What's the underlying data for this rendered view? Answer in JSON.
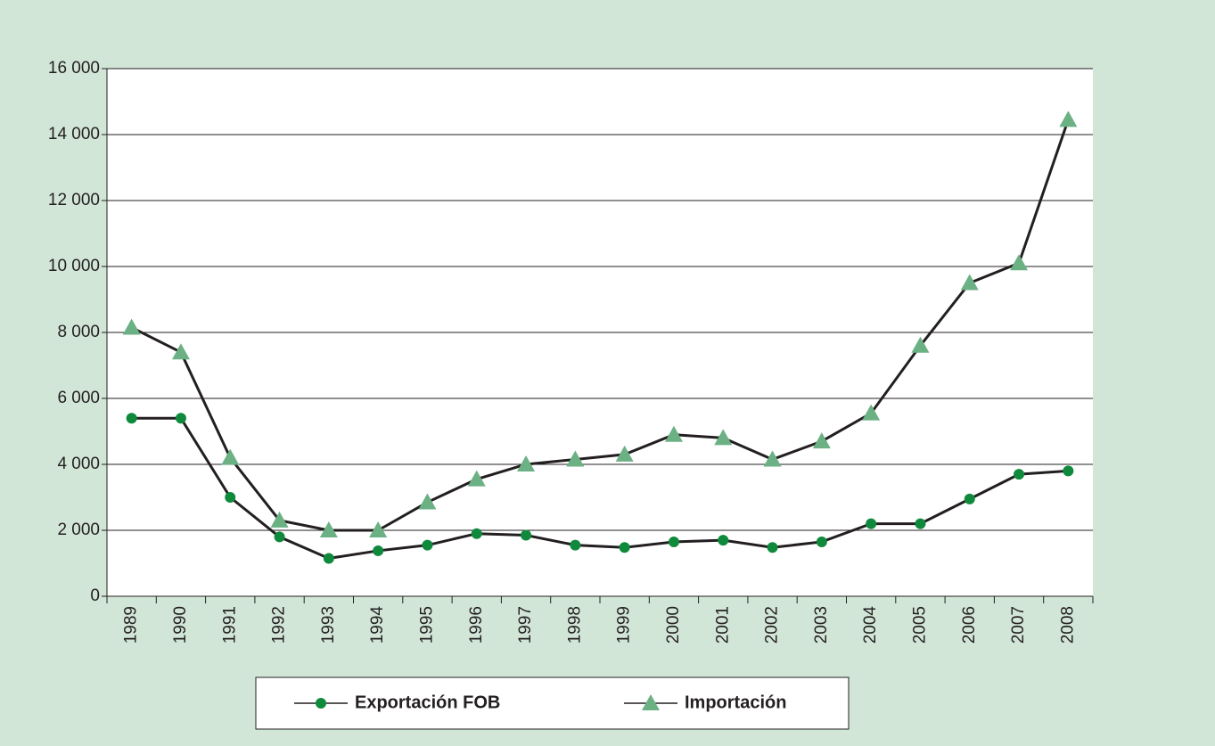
{
  "chart_data": {
    "type": "line",
    "categories": [
      "1989",
      "1990",
      "1991",
      "1992",
      "1993",
      "1994",
      "1995",
      "1996",
      "1997",
      "1998",
      "1999",
      "2000",
      "2001",
      "2002",
      "2003",
      "2004",
      "2005",
      "2006",
      "2007",
      "2008"
    ],
    "series": [
      {
        "name": "Exportación FOB",
        "color": "#0f8a3c",
        "marker": "circle",
        "values": [
          5400,
          5400,
          3000,
          1800,
          1150,
          1380,
          1550,
          1900,
          1850,
          1550,
          1480,
          1650,
          1700,
          1480,
          1650,
          2200,
          2200,
          2950,
          3700,
          3800
        ]
      },
      {
        "name": "Importación",
        "color": "#6bb184",
        "marker": "triangle",
        "values": [
          8150,
          7400,
          4200,
          2300,
          2000,
          2000,
          2850,
          3550,
          4000,
          4150,
          4300,
          4900,
          4800,
          4150,
          4700,
          5550,
          7600,
          9500,
          10100,
          14450
        ]
      }
    ],
    "line_color": "#231f20",
    "ylim": [
      0,
      16000
    ],
    "yticks": [
      0,
      {
        "value": 2000,
        "label": "2 000"
      },
      {
        "value": 4000,
        "label": "4 000"
      },
      {
        "value": 6000,
        "label": "6 000"
      },
      {
        "value": 8000,
        "label": "8 000"
      },
      {
        "value": 10000,
        "label": "10 000"
      },
      {
        "value": 12000,
        "label": "12 000"
      },
      {
        "value": 14000,
        "label": "14 000"
      },
      {
        "value": 16000,
        "label": "16 000"
      }
    ],
    "grid": true,
    "legend": "bottom"
  }
}
